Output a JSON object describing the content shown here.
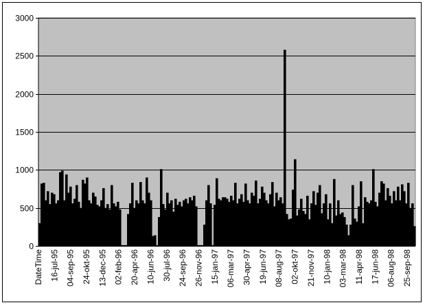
{
  "chart_data": {
    "type": "bar",
    "title": "",
    "xlabel": "",
    "ylabel": "",
    "ylim": [
      0,
      3000
    ],
    "yticks": [
      "0",
      "500",
      "1000",
      "1500",
      "2000",
      "2500",
      "3000"
    ],
    "grid": true,
    "legend": "none",
    "plot_background": "#C0C0C0",
    "bar_color": "#000000",
    "x_tick_labels": [
      "DateTime",
      "16-jul-95",
      "04-sep-95",
      "24-okt-95",
      "13-dec-95",
      "02-feb-96",
      "20-apr-96",
      "10-jun-96",
      "30-jul-96",
      "24-sep-96",
      "26-nov-96",
      "15-jan-97",
      "06-mar-97",
      "30-apr-97",
      "19-jun-97",
      "08-aug-97",
      "02-okt-97",
      "21-nov-97",
      "10-jan-98",
      "03-mar-98",
      "11-apr-98",
      "17-jun-98",
      "06-aug-98",
      "25-sep-98"
    ],
    "values": [
      300,
      820,
      830,
      600,
      720,
      550,
      700,
      680,
      560,
      600,
      970,
      990,
      600,
      940,
      700,
      780,
      560,
      620,
      800,
      580,
      500,
      870,
      820,
      900,
      600,
      560,
      700,
      650,
      540,
      520,
      600,
      760,
      500,
      550,
      480,
      800,
      560,
      520,
      580,
      480,
      10,
      10,
      10,
      420,
      560,
      830,
      500,
      600,
      560,
      840,
      600,
      560,
      900,
      700,
      600,
      130,
      140,
      10,
      380,
      1010,
      550,
      480,
      700,
      560,
      600,
      450,
      620,
      540,
      580,
      520,
      600,
      620,
      560,
      640,
      600,
      660,
      520,
      10,
      10,
      10,
      280,
      600,
      800,
      560,
      10,
      540,
      890,
      620,
      600,
      640,
      640,
      620,
      580,
      660,
      600,
      830,
      560,
      620,
      680,
      580,
      820,
      600,
      560,
      700,
      660,
      860,
      560,
      620,
      780,
      700,
      600,
      560,
      680,
      840,
      520,
      700,
      600,
      640,
      560,
      2580,
      420,
      350,
      360,
      740,
      1140,
      400,
      480,
      620,
      460,
      420,
      660,
      350,
      560,
      720,
      540,
      700,
      800,
      430,
      560,
      680,
      350,
      560,
      300,
      880,
      400,
      600,
      420,
      440,
      380,
      280,
      140,
      280,
      800,
      360,
      320,
      520,
      850,
      300,
      640,
      580,
      560,
      600,
      1010,
      580,
      520,
      700,
      850,
      820,
      600,
      760,
      660,
      560,
      720,
      600,
      780,
      600,
      810,
      720,
      560,
      830,
      500,
      560,
      260
    ]
  }
}
